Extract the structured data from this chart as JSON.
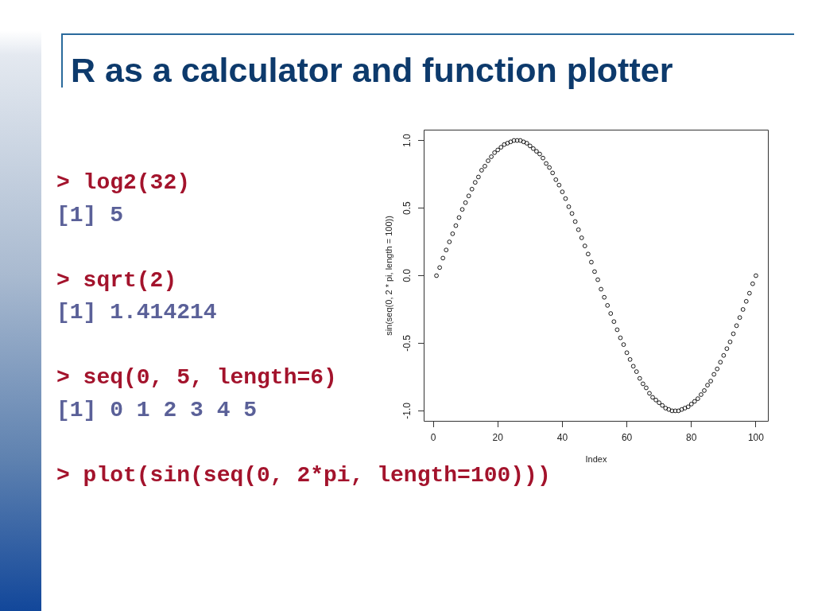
{
  "chart_data": {
    "type": "scatter",
    "title": "R as a calculator and function plotter",
    "xlabel": "Index",
    "ylabel": "sin(seq(0, 2 * pi, length = 100))",
    "x": [
      1,
      2,
      3,
      4,
      5,
      6,
      7,
      8,
      9,
      10,
      11,
      12,
      13,
      14,
      15,
      16,
      17,
      18,
      19,
      20,
      21,
      22,
      23,
      24,
      25,
      26,
      27,
      28,
      29,
      30,
      31,
      32,
      33,
      34,
      35,
      36,
      37,
      38,
      39,
      40,
      41,
      42,
      43,
      44,
      45,
      46,
      47,
      48,
      49,
      50,
      51,
      52,
      53,
      54,
      55,
      56,
      57,
      58,
      59,
      60,
      61,
      62,
      63,
      64,
      65,
      66,
      67,
      68,
      69,
      70,
      71,
      72,
      73,
      74,
      75,
      76,
      77,
      78,
      79,
      80,
      81,
      82,
      83,
      84,
      85,
      86,
      87,
      88,
      89,
      90,
      91,
      92,
      93,
      94,
      95,
      96,
      97,
      98,
      99,
      100
    ],
    "values": [
      0.0,
      0.06,
      0.13,
      0.19,
      0.25,
      0.31,
      0.37,
      0.43,
      0.49,
      0.54,
      0.59,
      0.64,
      0.69,
      0.73,
      0.78,
      0.81,
      0.85,
      0.88,
      0.91,
      0.93,
      0.95,
      0.97,
      0.98,
      0.99,
      1.0,
      1.0,
      1.0,
      0.99,
      0.98,
      0.96,
      0.94,
      0.92,
      0.9,
      0.87,
      0.83,
      0.8,
      0.76,
      0.71,
      0.67,
      0.62,
      0.57,
      0.51,
      0.46,
      0.4,
      0.34,
      0.28,
      0.22,
      0.16,
      0.1,
      0.03,
      -0.03,
      -0.1,
      -0.16,
      -0.22,
      -0.28,
      -0.34,
      -0.4,
      -0.46,
      -0.51,
      -0.57,
      -0.62,
      -0.67,
      -0.71,
      -0.76,
      -0.8,
      -0.83,
      -0.87,
      -0.9,
      -0.92,
      -0.94,
      -0.96,
      -0.98,
      -0.99,
      -1.0,
      -1.0,
      -1.0,
      -0.99,
      -0.98,
      -0.97,
      -0.95,
      -0.93,
      -0.91,
      -0.88,
      -0.85,
      -0.81,
      -0.78,
      -0.73,
      -0.69,
      -0.64,
      -0.59,
      -0.54,
      -0.49,
      -0.43,
      -0.37,
      -0.31,
      -0.25,
      -0.19,
      -0.13,
      -0.06,
      0.0
    ],
    "color": "#000000",
    "marker": "circle",
    "legend": false,
    "grid": false,
    "xlim": [
      -2.96,
      103.96
    ],
    "xticks": [
      0,
      20,
      40,
      60,
      80,
      100
    ],
    "ylim": [
      -1.08,
      1.08
    ],
    "yticks": [
      {
        "value": -1,
        "label": "-1.0"
      },
      {
        "value": -0.5,
        "label": "-0.5"
      },
      {
        "value": 0,
        "label": "0.0"
      },
      {
        "value": 0.5,
        "label": "0.5"
      },
      {
        "value": 1,
        "label": "1.0"
      }
    ],
    "annotations": [
      "> log2(32)",
      "[1] 5",
      "> sqrt(2)",
      "[1] 1.414214",
      "> seq(0, 5, length=6)",
      "[1] 0 1 2 3 4 5",
      "> plot(sin(seq(0, 2*pi, length=100)))"
    ]
  }
}
